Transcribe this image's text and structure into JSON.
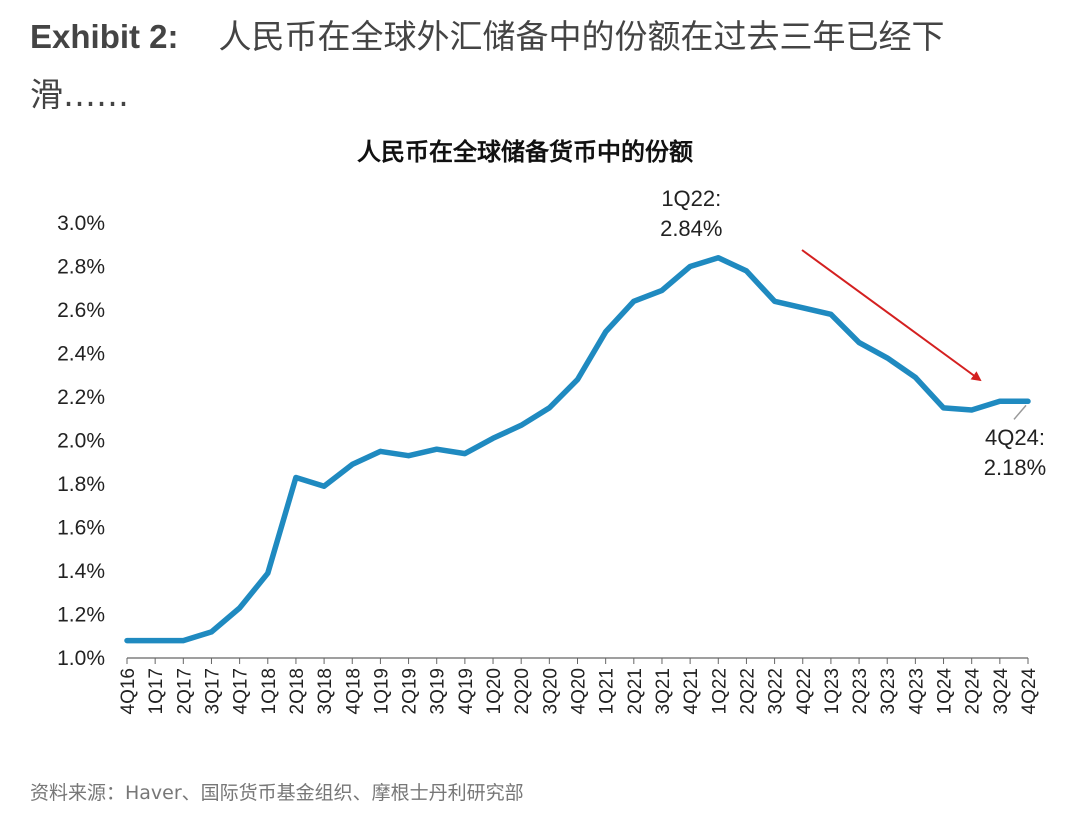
{
  "header": {
    "exhibit_label": "Exhibit 2:",
    "title": "人民币在全球外汇储备中的份额在过去三年已经下滑……"
  },
  "source": "资料来源：Haver、国际货币基金组织、摩根士丹利研究部",
  "colors": {
    "line": "#1f8ac0",
    "arrow": "#d42020",
    "axis": "#666666"
  },
  "chart_data": {
    "type": "line",
    "title": "人民币在全球储备货币中的份额",
    "xlabel": "",
    "ylabel": "",
    "ylim": [
      1.0,
      3.0
    ],
    "yticks": [
      "1.0%",
      "1.2%",
      "1.4%",
      "1.6%",
      "1.8%",
      "2.0%",
      "2.2%",
      "2.4%",
      "2.6%",
      "2.8%",
      "3.0%"
    ],
    "grid": false,
    "categories": [
      "4Q16",
      "1Q17",
      "2Q17",
      "3Q17",
      "4Q17",
      "1Q18",
      "2Q18",
      "3Q18",
      "4Q18",
      "1Q19",
      "2Q19",
      "3Q19",
      "4Q19",
      "1Q20",
      "2Q20",
      "3Q20",
      "4Q20",
      "1Q21",
      "2Q21",
      "3Q21",
      "4Q21",
      "1Q22",
      "2Q22",
      "3Q22",
      "4Q22",
      "1Q23",
      "2Q23",
      "3Q23",
      "4Q23",
      "1Q24",
      "2Q24",
      "3Q24",
      "4Q24"
    ],
    "series": [
      {
        "values": [
          1.08,
          1.08,
          1.08,
          1.12,
          1.23,
          1.39,
          1.83,
          1.79,
          1.89,
          1.95,
          1.93,
          1.96,
          1.94,
          2.01,
          2.07,
          2.15,
          2.28,
          2.5,
          2.64,
          2.69,
          2.8,
          2.84,
          2.78,
          2.64,
          2.61,
          2.58,
          2.45,
          2.38,
          2.29,
          2.15,
          2.14,
          2.18,
          2.18
        ]
      }
    ],
    "annotations": [
      {
        "category": "1Q22",
        "line1": "1Q22:",
        "line2": "2.84%"
      },
      {
        "category": "4Q24",
        "line1": "4Q24:",
        "line2": "2.18%"
      }
    ]
  }
}
